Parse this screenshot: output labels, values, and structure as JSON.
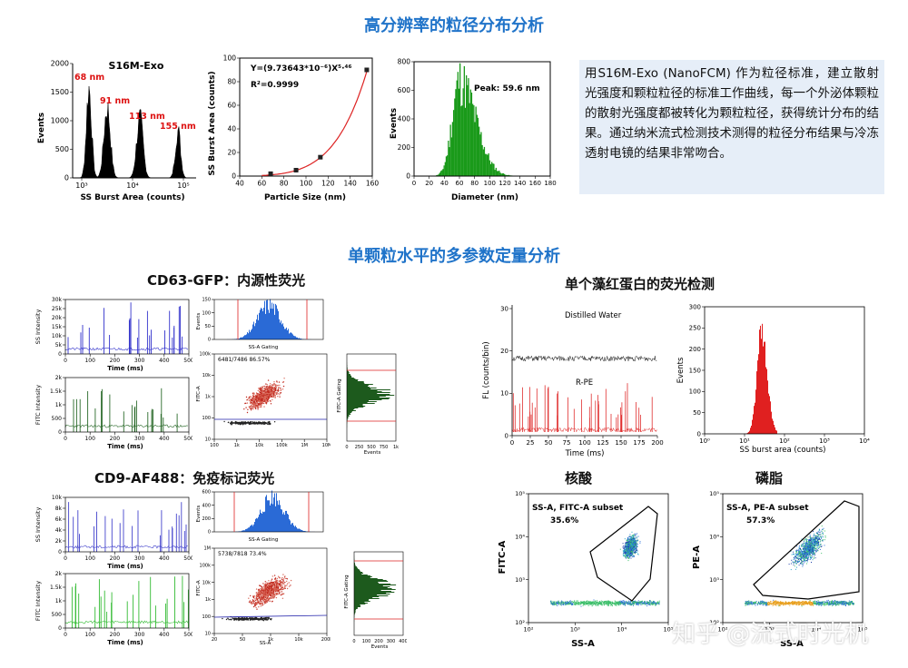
{
  "sections": {
    "top_title": "高分辨率的粒径分布分析",
    "mid_title": "单颗粒水平的多参数定量分析"
  },
  "description": "用S16M-Exo (NanoFCM) 作为粒径标准，建立散射光强度和颗粒粒径的标准工作曲线，每一个外泌体颗粒的散射光强度都被转化为颗粒粒径，获得统计分布的结果。通过纳米流式检测技术测得的粒径分布结果与冷冻透射电镜的结果非常吻合。",
  "subtitles": {
    "cd63": "CD63-GFP：内源性荧光",
    "cd9": "CD9-AF488：免疫标记荧光",
    "single_pe": "单个藻红蛋白的荧光检测",
    "nucleic": "核酸",
    "lipid": "磷脂"
  },
  "watermark": "知乎 @流式时光机",
  "chart_data": [
    {
      "type": "histogram",
      "title": "S16M-Exo",
      "xlabel": "SS Burst Area (counts)",
      "ylabel": "Events",
      "x_scale": "log",
      "xticks": [
        "10³",
        "10⁴",
        "10⁵"
      ],
      "yticks": [
        "0",
        "500",
        "1000",
        "1500",
        "2000"
      ],
      "ylim": [
        0,
        2000
      ],
      "peaks": [
        {
          "label": "68 nm",
          "value": 1600
        },
        {
          "label": "91 nm",
          "value": 1250
        },
        {
          "label": "113 nm",
          "value": 1050
        },
        {
          "label": "155 nm",
          "value": 850
        }
      ]
    },
    {
      "type": "scatter",
      "xlabel": "Particle Size (nm)",
      "ylabel": "SS Burst Area (counts)",
      "equation": "Y=(9.73643*10⁻⁶)X⁵·⁴⁶",
      "r2": "R²=0.9999",
      "x": [
        68,
        91,
        113,
        155
      ],
      "y": [
        2,
        5,
        16,
        90
      ],
      "xlim": [
        40,
        160
      ],
      "ylim": [
        0,
        100
      ],
      "xticks": [
        "40",
        "60",
        "80",
        "100",
        "120",
        "140",
        "160"
      ],
      "yticks": [
        "0",
        "20",
        "40",
        "60",
        "80",
        "100"
      ]
    },
    {
      "type": "histogram",
      "xlabel": "Diameter (nm)",
      "ylabel": "Events",
      "annotation": "Peak: 59.6 nm",
      "xlim": [
        0,
        180
      ],
      "ylim": [
        0,
        800
      ],
      "xticks": [
        "0",
        "20",
        "40",
        "60",
        "80",
        "100",
        "120",
        "140",
        "160",
        "180"
      ],
      "yticks": [
        "0",
        "200",
        "400",
        "600",
        "800"
      ],
      "peak": 59.6,
      "peak_count": 680
    },
    {
      "type": "line",
      "group": "CD63-GFP",
      "ylabel": "SS Intensity",
      "xlabel": "Time (ms)",
      "xticks": [
        "0",
        "100",
        "200",
        "300",
        "400",
        "500"
      ],
      "yticks": [
        "0",
        "5k",
        "10k",
        "15k",
        "20k",
        "25k",
        "30k"
      ]
    },
    {
      "type": "line",
      "group": "CD63-GFP",
      "ylabel": "FITC Intensity",
      "xlabel": "Time (ms)",
      "xticks": [
        "0",
        "100",
        "200",
        "300",
        "400",
        "500"
      ],
      "yticks": [
        "0",
        "500",
        "1k",
        "1.5k",
        "2k"
      ]
    },
    {
      "type": "histogram",
      "group": "CD63-GFP",
      "xlabel": "SS-A Gating",
      "ylabel": "Events",
      "yticks": [
        "0",
        "50",
        "100",
        "150"
      ]
    },
    {
      "type": "scatter",
      "group": "CD63-GFP",
      "xlabel": "SS-A",
      "ylabel": "FITC-A",
      "annotation": "6481/7486  86.57%",
      "xticks": [
        "100",
        "1k",
        "10k",
        "100k",
        "1M",
        "10M"
      ],
      "yticks": [
        "10",
        "100",
        "1k",
        "10k",
        "100k"
      ]
    },
    {
      "type": "histogram",
      "group": "CD63-GFP",
      "xlabel": "Events",
      "ylabel": "FITC-A Gating",
      "xticks": [
        "0",
        "250",
        "500",
        "750",
        "1k"
      ]
    },
    {
      "type": "line",
      "group": "CD9-AF488",
      "ylabel": "SS Intensity",
      "xlabel": "Time (ms)",
      "xticks": [
        "0",
        "100",
        "200",
        "300",
        "400",
        "500"
      ],
      "yticks": [
        "0",
        "2k",
        "4k",
        "6k",
        "8k",
        "10k"
      ]
    },
    {
      "type": "line",
      "group": "CD9-AF488",
      "ylabel": "FITC Intensity",
      "xlabel": "Time (ms)",
      "xticks": [
        "0",
        "100",
        "200",
        "300",
        "400",
        "500"
      ],
      "yticks": [
        "0",
        "500",
        "1k",
        "1.5k",
        "2k"
      ]
    },
    {
      "type": "histogram",
      "group": "CD9-AF488",
      "xlabel": "SS-A Gating",
      "ylabel": "Events",
      "yticks": [
        "0",
        "200",
        "400",
        "600"
      ]
    },
    {
      "type": "scatter",
      "group": "CD9-AF488",
      "xlabel": "SS-A",
      "ylabel": "FITC-A",
      "annotation": "5738/7818  73.4%",
      "xticks": [
        "20",
        "50",
        "1k",
        "10k",
        "200k"
      ],
      "yticks": [
        "10",
        "100",
        "1k",
        "10k",
        "100k",
        "1M"
      ]
    },
    {
      "type": "histogram",
      "group": "CD9-AF488",
      "xlabel": "Events",
      "ylabel": "FITC-A Gating",
      "xticks": [
        "0",
        "100",
        "200",
        "300",
        "400"
      ]
    },
    {
      "type": "line",
      "ylabel": "FL (counts/bin)",
      "xlabel": "Time (ms)",
      "series": [
        {
          "name": "Distilled Water"
        },
        {
          "name": "R-PE"
        }
      ],
      "xticks": [
        "0",
        "25",
        "50",
        "75",
        "100",
        "125",
        "150",
        "175",
        "200"
      ],
      "yticks": [
        "0",
        "10",
        "20",
        "30"
      ]
    },
    {
      "type": "histogram",
      "xlabel": "SS burst area (counts)",
      "ylabel": "Events",
      "x_scale": "log",
      "xticks": [
        "10⁰",
        "10¹",
        "10²",
        "10³",
        "10⁴"
      ],
      "yticks": [
        "0",
        "50",
        "100",
        "150",
        "200",
        "250",
        "300"
      ],
      "ylim": [
        0,
        300
      ],
      "peak_count": 245
    },
    {
      "type": "scatter",
      "title": "SS-A, FITC-A subset",
      "annotation": "35.6%",
      "xlabel": "SS-A",
      "ylabel": "FITC-A",
      "xticks": [
        "10²",
        "10³",
        "10⁴",
        "10⁵"
      ],
      "yticks": [
        "10²",
        "10³",
        "10⁴",
        "10⁵"
      ]
    },
    {
      "type": "scatter",
      "title": "SS-A, PE-A subset",
      "annotation": "57.3%",
      "xlabel": "SS-A",
      "ylabel": "PE-A",
      "xticks": [
        "10²",
        "10³",
        "10⁴",
        "10⁵"
      ],
      "yticks": [
        "10²",
        "10³",
        "10⁴",
        "10⁵"
      ]
    }
  ]
}
